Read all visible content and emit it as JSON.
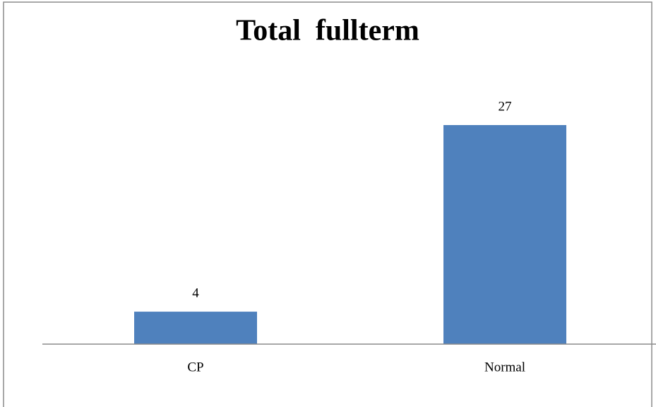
{
  "chart_data": {
    "type": "bar",
    "title": "Total  fullterm",
    "categories": [
      "CP",
      "Normal"
    ],
    "values": [
      4,
      27
    ],
    "color": "#4f81bd"
  }
}
